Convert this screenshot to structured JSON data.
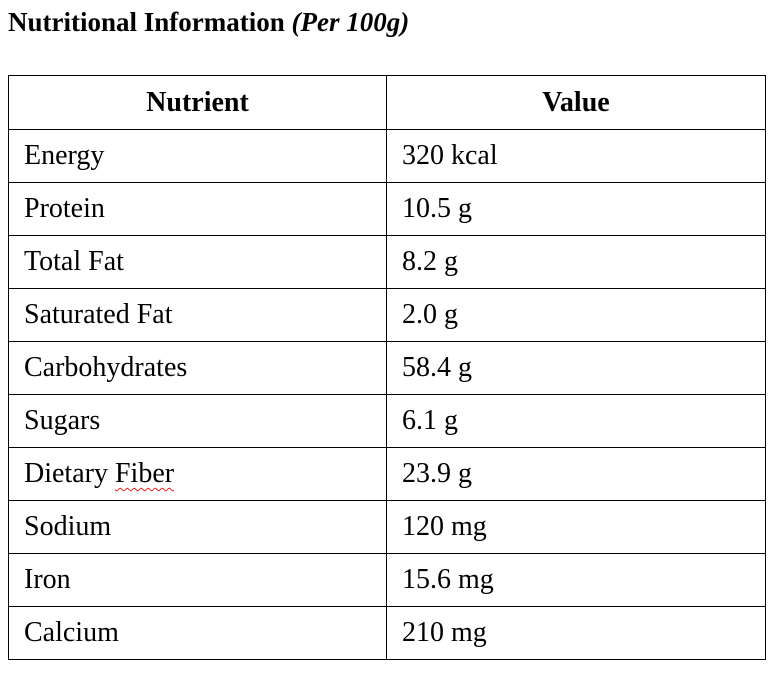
{
  "title": {
    "main": "Nutritional Information",
    "sub": "(Per 100g)"
  },
  "table": {
    "headers": [
      "Nutrient",
      "Value"
    ],
    "rows": [
      {
        "nutrient": "Energy",
        "value": "320 kcal"
      },
      {
        "nutrient": "Protein",
        "value": "10.5 g"
      },
      {
        "nutrient": "Total Fat",
        "value": "8.2 g"
      },
      {
        "nutrient": "Saturated Fat",
        "value": "2.0 g"
      },
      {
        "nutrient": "Carbohydrates",
        "value": "58.4 g"
      },
      {
        "nutrient": "Sugars",
        "value": "6.1 g"
      },
      {
        "nutrient": "Dietary",
        "nutrient_flagged": "Fiber",
        "value": "23.9 g"
      },
      {
        "nutrient": "Sodium",
        "value": "120 mg"
      },
      {
        "nutrient": "Iron",
        "value": "15.6 mg"
      },
      {
        "nutrient": "Calcium",
        "value": "210 mg"
      }
    ]
  },
  "colors": {
    "text": "#000000",
    "border": "#000000",
    "spellcheck_underline": "#e02020"
  }
}
